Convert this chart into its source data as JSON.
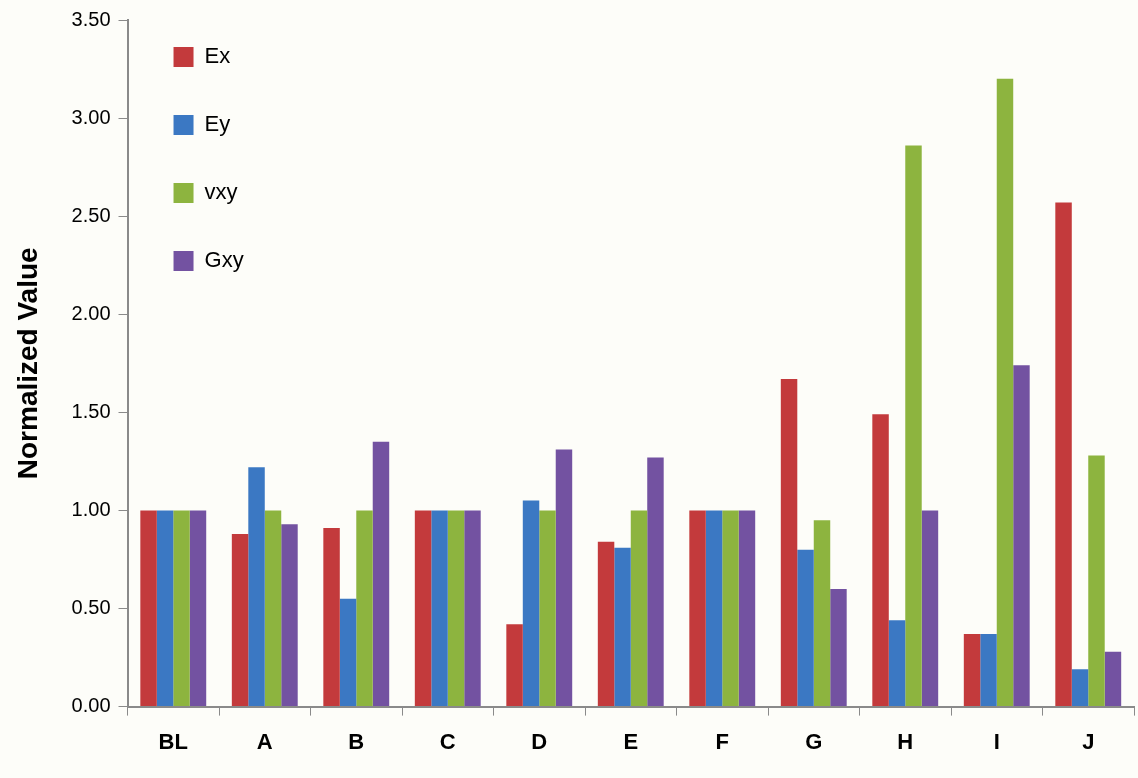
{
  "chart_data": {
    "type": "bar",
    "ylabel": "Normalized Value",
    "categories": [
      "BL",
      "A",
      "B",
      "C",
      "D",
      "E",
      "F",
      "G",
      "H",
      "I",
      "J"
    ],
    "series": [
      {
        "name": "Ex",
        "color": "#c33a3c",
        "values": [
          1.0,
          0.88,
          0.91,
          1.0,
          0.42,
          0.84,
          1.0,
          1.67,
          1.49,
          0.37,
          2.57
        ]
      },
      {
        "name": "Ey",
        "color": "#3b78c3",
        "values": [
          1.0,
          1.22,
          0.55,
          1.0,
          1.05,
          0.81,
          1.0,
          0.8,
          0.44,
          0.37,
          0.19
        ]
      },
      {
        "name": "vxy",
        "color": "#8db43f",
        "values": [
          1.0,
          1.0,
          1.0,
          1.0,
          1.0,
          1.0,
          1.0,
          0.95,
          2.86,
          3.2,
          1.28
        ]
      },
      {
        "name": "Gxy",
        "color": "#7352a1",
        "values": [
          1.0,
          0.93,
          1.35,
          1.0,
          1.31,
          1.27,
          1.0,
          0.6,
          1.0,
          1.74,
          0.28
        ]
      }
    ],
    "ylim": [
      0,
      3.5
    ],
    "yticks": [
      {
        "value": 0,
        "label": "0.00"
      },
      {
        "value": 0.5,
        "label": "0.50"
      },
      {
        "value": 1,
        "label": "1.00"
      },
      {
        "value": 1.5,
        "label": "1.50"
      },
      {
        "value": 2,
        "label": "2.00"
      },
      {
        "value": 2.5,
        "label": "2.50"
      },
      {
        "value": 3,
        "label": "3.00"
      },
      {
        "value": 3.5,
        "label": "3.50"
      }
    ],
    "grid": false,
    "legend": "top left"
  }
}
